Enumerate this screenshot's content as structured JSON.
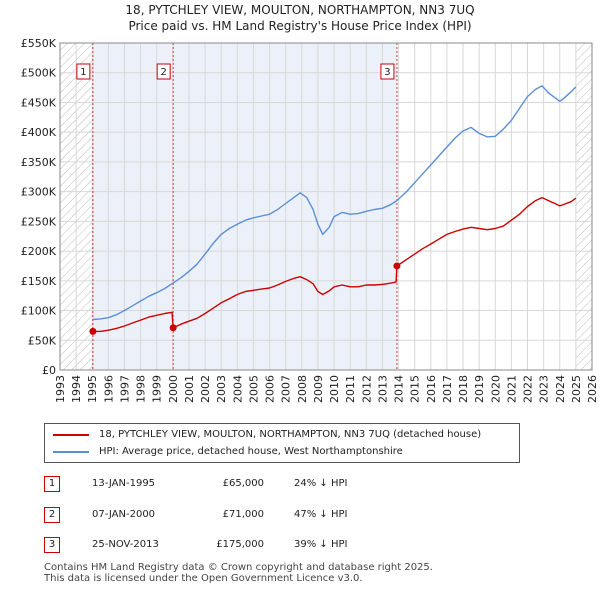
{
  "title_line1": "18, PYTCHLEY VIEW, MOULTON, NORTHAMPTON, NN3 7UQ",
  "title_line2": "Price paid vs. HM Land Registry's House Price Index (HPI)",
  "chart_data": {
    "type": "line",
    "title": "18, PYTCHLEY VIEW, MOULTON, NORTHAMPTON, NN3 7UQ — Price paid vs. HM Land Registry's House Price Index (HPI)",
    "xlabel": "",
    "ylabel": "",
    "xlim": [
      1993,
      2026
    ],
    "ylim": [
      0,
      550000
    ],
    "xticks": [
      1993,
      1994,
      1995,
      1996,
      1997,
      1998,
      1999,
      2000,
      2001,
      2002,
      2003,
      2004,
      2005,
      2006,
      2007,
      2008,
      2009,
      2010,
      2011,
      2012,
      2013,
      2014,
      2015,
      2016,
      2017,
      2018,
      2019,
      2020,
      2021,
      2022,
      2023,
      2024,
      2025,
      2026
    ],
    "yticks": [
      0,
      50000,
      100000,
      150000,
      200000,
      250000,
      300000,
      350000,
      400000,
      450000,
      500000,
      550000
    ],
    "ytick_labels": [
      "£0",
      "£50K",
      "£100K",
      "£150K",
      "£200K",
      "£250K",
      "£300K",
      "£350K",
      "£400K",
      "£450K",
      "£500K",
      "£550K"
    ],
    "grid": true,
    "hatched_before": 1995.04,
    "hatched_after": 2025.0,
    "shaded_ranges": [
      [
        1995.04,
        2000.02
      ],
      [
        2000.02,
        2013.9
      ]
    ],
    "series": [
      {
        "name": "18, PYTCHLEY VIEW, MOULTON, NORTHAMPTON, NN3 7UQ (detached house)",
        "color": "#cc0000",
        "x": [
          1995.04,
          1995.5,
          1996.0,
          1996.5,
          1997.0,
          1997.5,
          1998.0,
          1998.5,
          1999.0,
          1999.5,
          1999.95,
          2000.02,
          2000.5,
          2001.0,
          2001.5,
          2002.0,
          2002.5,
          2003.0,
          2003.5,
          2004.0,
          2004.5,
          2005.0,
          2005.5,
          2006.0,
          2006.5,
          2007.0,
          2007.5,
          2007.9,
          2008.3,
          2008.7,
          2009.0,
          2009.3,
          2009.7,
          2010.0,
          2010.5,
          2011.0,
          2011.5,
          2012.0,
          2012.5,
          2013.0,
          2013.5,
          2013.85,
          2013.9,
          2014.5,
          2015.0,
          2015.5,
          2016.0,
          2016.5,
          2017.0,
          2017.5,
          2018.0,
          2018.5,
          2019.0,
          2019.5,
          2020.0,
          2020.5,
          2021.0,
          2021.5,
          2022.0,
          2022.5,
          2022.9,
          2023.3,
          2023.7,
          2024.0,
          2024.3,
          2024.7,
          2025.0
        ],
        "values": [
          65000,
          65000,
          67000,
          70000,
          74000,
          79000,
          84000,
          89000,
          92000,
          95000,
          97000,
          71000,
          77000,
          82000,
          87000,
          95000,
          104000,
          113000,
          120000,
          127000,
          132000,
          134000,
          136000,
          138000,
          143000,
          149000,
          154000,
          157000,
          152000,
          145000,
          132000,
          127000,
          133000,
          140000,
          143000,
          140000,
          140000,
          143000,
          143000,
          144000,
          146000,
          148000,
          175000,
          186000,
          195000,
          204000,
          212000,
          220000,
          228000,
          233000,
          237000,
          240000,
          238000,
          236000,
          238000,
          242000,
          252000,
          262000,
          275000,
          285000,
          290000,
          285000,
          280000,
          276000,
          279000,
          283000,
          289000
        ]
      },
      {
        "name": "HPI: Average price, detached house, West Northamptonshire",
        "color": "#5b8fd4",
        "x": [
          1995.04,
          1995.5,
          1996.0,
          1996.5,
          1997.0,
          1997.5,
          1998.0,
          1998.5,
          1999.0,
          1999.5,
          2000.0,
          2000.5,
          2001.0,
          2001.5,
          2002.0,
          2002.5,
          2003.0,
          2003.5,
          2004.0,
          2004.5,
          2005.0,
          2005.5,
          2006.0,
          2006.5,
          2007.0,
          2007.5,
          2007.9,
          2008.3,
          2008.7,
          2009.0,
          2009.3,
          2009.7,
          2010.0,
          2010.5,
          2011.0,
          2011.5,
          2012.0,
          2012.5,
          2013.0,
          2013.5,
          2013.9,
          2014.5,
          2015.0,
          2015.5,
          2016.0,
          2016.5,
          2017.0,
          2017.5,
          2018.0,
          2018.5,
          2019.0,
          2019.5,
          2020.0,
          2020.5,
          2021.0,
          2021.5,
          2022.0,
          2022.5,
          2022.9,
          2023.3,
          2023.7,
          2024.0,
          2024.3,
          2024.7,
          2025.0
        ],
        "values": [
          85000,
          86000,
          88000,
          93000,
          100000,
          108000,
          116000,
          124000,
          130000,
          137000,
          146000,
          155000,
          166000,
          178000,
          195000,
          213000,
          228000,
          238000,
          245000,
          252000,
          256000,
          259000,
          262000,
          270000,
          280000,
          290000,
          298000,
          290000,
          270000,
          245000,
          228000,
          240000,
          258000,
          265000,
          262000,
          263000,
          267000,
          270000,
          272000,
          278000,
          285000,
          300000,
          315000,
          330000,
          345000,
          360000,
          375000,
          390000,
          402000,
          408000,
          398000,
          392000,
          393000,
          405000,
          420000,
          440000,
          460000,
          472000,
          478000,
          466000,
          458000,
          452000,
          458000,
          468000,
          476000
        ]
      }
    ],
    "markers": [
      {
        "label": "1",
        "x": 1995.04,
        "y": 65000
      },
      {
        "label": "2",
        "x": 2000.02,
        "y": 71000
      },
      {
        "label": "3",
        "x": 2013.9,
        "y": 175000
      }
    ]
  },
  "legend": {
    "red_label": "18, PYTCHLEY VIEW, MOULTON, NORTHAMPTON, NN3 7UQ (detached house)",
    "blue_label": "HPI: Average price, detached house, West Northamptonshire",
    "red_color": "#cc0000",
    "blue_color": "#5b8fd4"
  },
  "transactions": [
    {
      "num": "1",
      "date": "13-JAN-1995",
      "price": "£65,000",
      "hpi": "24% ↓ HPI"
    },
    {
      "num": "2",
      "date": "07-JAN-2000",
      "price": "£71,000",
      "hpi": "47% ↓ HPI"
    },
    {
      "num": "3",
      "date": "25-NOV-2013",
      "price": "£175,000",
      "hpi": "39% ↓ HPI"
    }
  ],
  "footer_line1": "Contains HM Land Registry data © Crown copyright and database right 2025.",
  "footer_line2": "This data is licensed under the Open Government Licence v3.0."
}
